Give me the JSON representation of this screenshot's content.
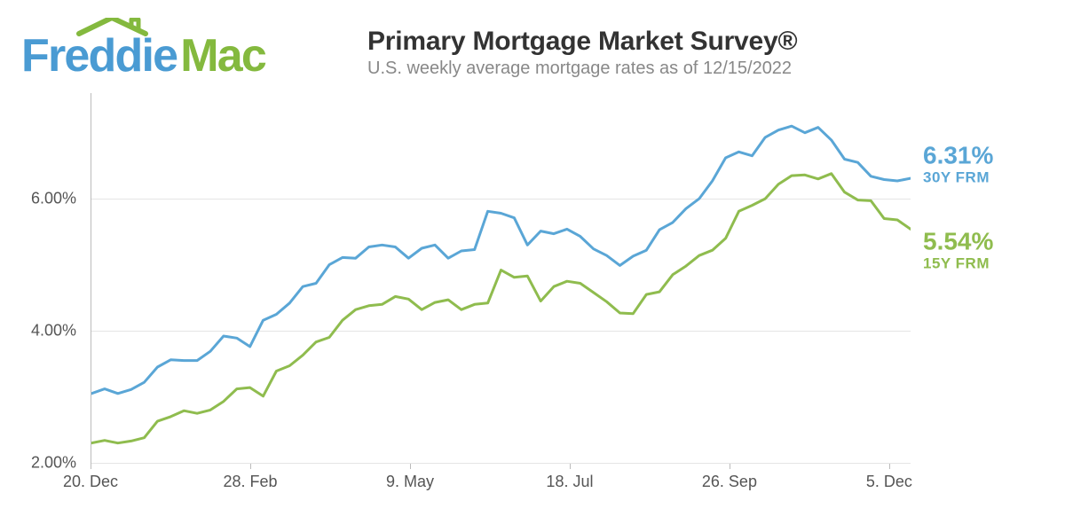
{
  "brand": {
    "word1": "Freddie",
    "word2": "Mac",
    "color1": "#4a9bd3",
    "color2": "#84b93e",
    "roof_color": "#84b93e"
  },
  "title": "Primary Mortgage Market Survey®",
  "subtitle": "U.S. weekly average mortgage rates as of 12/15/2022",
  "chart": {
    "type": "line",
    "background_color": "#ffffff",
    "grid_color": "#e5e5e5",
    "axis_color": "#bbbbbb",
    "label_color": "#555555",
    "label_fontsize": 18,
    "ylim": [
      2.0,
      7.6
    ],
    "yticks": [
      2.0,
      4.0,
      6.0
    ],
    "ytick_labels": [
      "2.00%",
      "4.00%",
      "6.00%"
    ],
    "xtick_positions": [
      0.0,
      0.195,
      0.39,
      0.585,
      0.78,
      0.975
    ],
    "xtick_labels": [
      "20. Dec",
      "28. Feb",
      "9. May",
      "18. Jul",
      "26. Sep",
      "5. Dec"
    ],
    "line_width": 3,
    "series": [
      {
        "name": "30Y FRM",
        "color": "#5aa6d6",
        "end_value_label": "6.31%",
        "end_label_y_offset": -16,
        "values": [
          3.05,
          3.12,
          3.05,
          3.11,
          3.22,
          3.45,
          3.56,
          3.55,
          3.55,
          3.69,
          3.92,
          3.89,
          3.76,
          4.16,
          4.25,
          4.42,
          4.67,
          4.72,
          5.0,
          5.11,
          5.1,
          5.27,
          5.3,
          5.27,
          5.1,
          5.25,
          5.3,
          5.1,
          5.21,
          5.23,
          5.81,
          5.78,
          5.71,
          5.3,
          5.51,
          5.47,
          5.54,
          5.43,
          5.24,
          5.14,
          4.99,
          5.13,
          5.22,
          5.53,
          5.64,
          5.85,
          6.0,
          6.27,
          6.62,
          6.71,
          6.65,
          6.93,
          7.04,
          7.1,
          7.0,
          7.08,
          6.89,
          6.6,
          6.55,
          6.34,
          6.29,
          6.27,
          6.31
        ]
      },
      {
        "name": "15Y FRM",
        "color": "#8fbc4e",
        "end_value_label": "5.54%",
        "end_label_y_offset": 24,
        "values": [
          2.3,
          2.34,
          2.3,
          2.33,
          2.38,
          2.63,
          2.7,
          2.79,
          2.75,
          2.8,
          2.93,
          3.12,
          3.14,
          3.01,
          3.39,
          3.47,
          3.63,
          3.83,
          3.9,
          4.16,
          4.32,
          4.38,
          4.4,
          4.52,
          4.48,
          4.32,
          4.43,
          4.47,
          4.32,
          4.4,
          4.42,
          4.92,
          4.81,
          4.83,
          4.45,
          4.67,
          4.75,
          4.72,
          4.58,
          4.44,
          4.27,
          4.26,
          4.55,
          4.59,
          4.85,
          4.98,
          5.14,
          5.22,
          5.4,
          5.81,
          5.9,
          6.0,
          6.22,
          6.35,
          6.36,
          6.3,
          6.38,
          6.1,
          5.98,
          5.97,
          5.7,
          5.68,
          5.54
        ]
      }
    ]
  }
}
